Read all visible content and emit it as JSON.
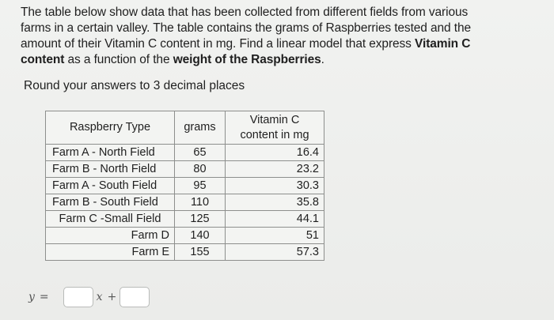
{
  "question": {
    "line1": "The table below show data that has been collected from different fields from various",
    "line2": "farms in a certain valley. The table contains the grams of Raspberries tested and the",
    "line3_pre": "amount of their Vitamin C content in mg. Find a linear model that express ",
    "line3_bold": "Vitamin C",
    "line4_bold1": "content",
    "line4_mid": " as a function of the ",
    "line4_bold2": "weight of the Raspberries",
    "line4_end": "."
  },
  "round_note": "Round your answers to 3 decimal places",
  "table": {
    "headers": {
      "type": "Raspberry Type",
      "grams": "grams",
      "vitamin_line1": "Vitamin C",
      "vitamin_line2": "content in mg"
    },
    "rows": [
      {
        "type": "Farm A - North Field",
        "grams": "65",
        "vitamin": "16.4"
      },
      {
        "type": "Farm B - North Field",
        "grams": "80",
        "vitamin": "23.2"
      },
      {
        "type": "Farm A - South Field",
        "grams": "95",
        "vitamin": "30.3"
      },
      {
        "type": "Farm B - South Field",
        "grams": "110",
        "vitamin": "35.8"
      },
      {
        "type": "Farm C -Small Field",
        "grams": "125",
        "vitamin": "44.1"
      },
      {
        "type": "Farm D",
        "grams": "140",
        "vitamin": "51"
      },
      {
        "type": "Farm E",
        "grams": "155",
        "vitamin": "57.3"
      }
    ]
  },
  "equation": {
    "y_symbol": "y",
    "equals": "=",
    "x_symbol": "x",
    "plus": "+",
    "slope_value": "",
    "intercept_value": ""
  }
}
